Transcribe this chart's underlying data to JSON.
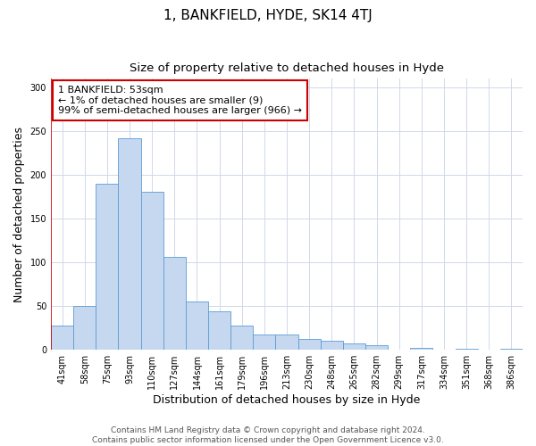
{
  "title": "1, BANKFIELD, HYDE, SK14 4TJ",
  "subtitle": "Size of property relative to detached houses in Hyde",
  "xlabel": "Distribution of detached houses by size in Hyde",
  "ylabel": "Number of detached properties",
  "bar_labels": [
    "41sqm",
    "58sqm",
    "75sqm",
    "93sqm",
    "110sqm",
    "127sqm",
    "144sqm",
    "161sqm",
    "179sqm",
    "196sqm",
    "213sqm",
    "230sqm",
    "248sqm",
    "265sqm",
    "282sqm",
    "299sqm",
    "317sqm",
    "334sqm",
    "351sqm",
    "368sqm",
    "386sqm"
  ],
  "bar_values": [
    28,
    50,
    190,
    242,
    181,
    106,
    55,
    44,
    28,
    18,
    18,
    12,
    10,
    7,
    5,
    0,
    2,
    0,
    1,
    0,
    1
  ],
  "bar_color": "#c5d8f0",
  "bar_edge_color": "#5b9bd5",
  "ylim": [
    0,
    310
  ],
  "yticks": [
    0,
    50,
    100,
    150,
    200,
    250,
    300
  ],
  "annotation_box_text": "1 BANKFIELD: 53sqm\n← 1% of detached houses are smaller (9)\n99% of semi-detached houses are larger (966) →",
  "annotation_box_edge_color": "#cc0000",
  "vertical_line_color": "#cc0000",
  "footer_text": "Contains HM Land Registry data © Crown copyright and database right 2024.\nContains public sector information licensed under the Open Government Licence v3.0.",
  "bg_color": "#ffffff",
  "grid_color": "#d0d8e8",
  "title_fontsize": 11,
  "subtitle_fontsize": 9.5,
  "axis_label_fontsize": 9,
  "tick_fontsize": 7,
  "ann_fontsize": 8,
  "footer_fontsize": 6.5
}
